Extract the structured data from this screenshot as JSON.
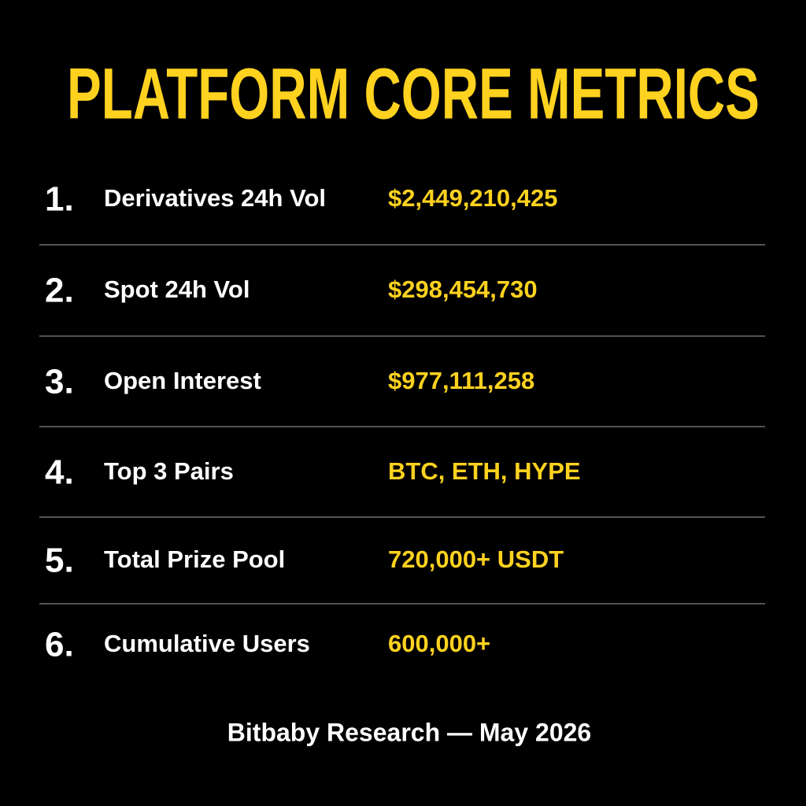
{
  "title": "PLATFORM CORE METRICS",
  "rows": [
    {
      "number": "1.",
      "label": "Derivatives 24h Vol",
      "value": "$2,449,210,425"
    },
    {
      "number": "2.",
      "label": "Spot 24h Vol",
      "value": "$298,454,730"
    },
    {
      "number": "3.",
      "label": "Open Interest",
      "value": "$977,111,258"
    },
    {
      "number": "4.",
      "label": "Top 3 Pairs",
      "value": "BTC, ETH, HYPE"
    },
    {
      "number": "5.",
      "label": "Total Prize Pool",
      "value": "720,000+ USDT"
    },
    {
      "number": "6.",
      "label": "Cumulative Users",
      "value": "600,000+"
    }
  ],
  "footer": "Bitbaby Research — May 2026"
}
